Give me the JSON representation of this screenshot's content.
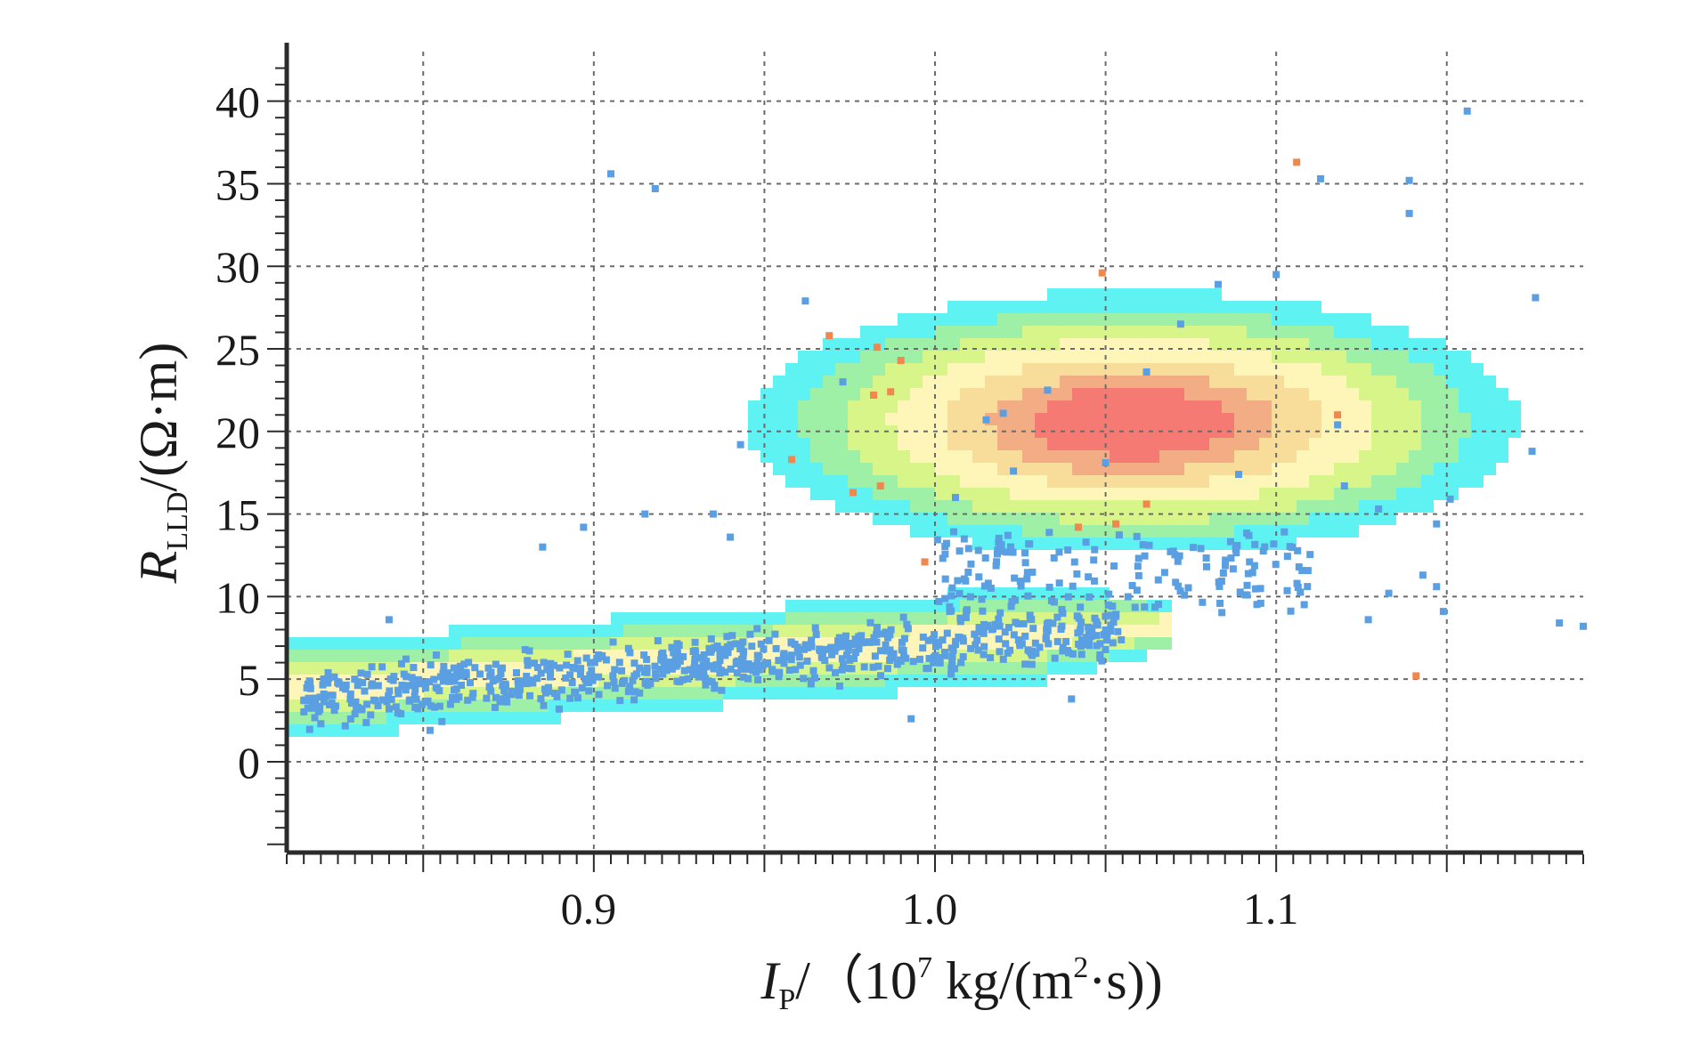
{
  "chart_data": {
    "type": "scatter",
    "title": "",
    "x_axis": {
      "label_main": "I",
      "label_sub": "P",
      "label_unit_pre": "/（10",
      "label_unit_exp": "7",
      "label_unit_mid": " kg/(m",
      "label_unit_exp2": "2",
      "label_unit_post": "·s))",
      "ticks": [
        0.9,
        1.0,
        1.1
      ],
      "tick_labels": [
        "0.9",
        "1.0",
        "1.1"
      ],
      "range": [
        0.81,
        1.19
      ]
    },
    "y_axis": {
      "label_main": "R",
      "label_sub": "LLD",
      "label_unit": "/(Ω·m)",
      "ticks": [
        0,
        5,
        10,
        15,
        20,
        25,
        30,
        35,
        40
      ],
      "tick_labels": [
        "0",
        "5",
        "10",
        "15",
        "20",
        "25",
        "30",
        "35",
        "40"
      ],
      "range": [
        -5.5,
        43
      ]
    },
    "grid": true,
    "grid_x": [
      0.85,
      0.9,
      0.95,
      1.0,
      1.05,
      1.1,
      1.15
    ],
    "grid_y": [
      0,
      5,
      10,
      15,
      20,
      25,
      30,
      35,
      40
    ],
    "density_colors": [
      "#5ff2f2",
      "#9df0a6",
      "#d8f58a",
      "#fdf6b8",
      "#f7dc9a",
      "#f3ad84",
      "#f57a73",
      "#f35c5c"
    ],
    "density_high_cluster": {
      "center_x": 1.058,
      "center_y": 20.5,
      "rings": [
        {
          "x_half": 0.113,
          "y_half": 8.0,
          "level": 0
        },
        {
          "x_half": 0.098,
          "y_half": 6.9,
          "level": 1
        },
        {
          "x_half": 0.085,
          "y_half": 6.0,
          "level": 2
        },
        {
          "x_half": 0.071,
          "y_half": 5.0,
          "level": 3
        },
        {
          "x_half": 0.056,
          "y_half": 3.9,
          "level": 4
        },
        {
          "x_half": 0.042,
          "y_half": 3.0,
          "level": 5
        },
        {
          "x_half": 0.03,
          "y_half": 2.1,
          "level": 6
        }
      ]
    },
    "density_band": {
      "x_start": 0.81,
      "x_end": 1.07,
      "y_at_start": 4.3,
      "y_at_end": 8.3,
      "rings": [
        {
          "half_height": 2.9,
          "level": 0
        },
        {
          "half_height": 2.1,
          "level": 1
        },
        {
          "half_height": 1.4,
          "level": 2
        },
        {
          "half_height": 0.8,
          "level": 3
        }
      ]
    },
    "series": [
      {
        "color": "#5b9fe3",
        "points": [
          [
            0.905,
            35.6
          ],
          [
            0.918,
            34.7
          ],
          [
            1.156,
            39.4
          ],
          [
            1.113,
            35.3
          ],
          [
            1.139,
            35.2
          ],
          [
            1.139,
            33.2
          ],
          [
            0.962,
            27.9
          ],
          [
            1.1,
            29.5
          ],
          [
            1.083,
            28.9
          ],
          [
            1.176,
            28.1
          ],
          [
            1.175,
            18.8
          ],
          [
            1.183,
            8.4
          ],
          [
            1.19,
            8.2
          ],
          [
            0.943,
            19.2
          ],
          [
            0.935,
            15.0
          ],
          [
            0.915,
            15.0
          ],
          [
            0.897,
            14.2
          ],
          [
            0.885,
            13.0
          ],
          [
            0.94,
            13.6
          ],
          [
            0.84,
            8.6
          ],
          [
            1.147,
            10.6
          ],
          [
            1.151,
            15.9
          ],
          [
            1.143,
            11.3
          ],
          [
            1.149,
            9.1
          ],
          [
            1.147,
            14.4
          ],
          [
            1.127,
            8.6
          ],
          [
            1.133,
            10.2
          ],
          [
            1.04,
            3.8
          ],
          [
            0.993,
            2.6
          ],
          [
            0.84,
            3.2
          ],
          [
            0.852,
            1.9
          ],
          [
            0.82,
            2.3
          ],
          [
            0.815,
            3.7
          ],
          [
            0.83,
            2.9
          ],
          [
            1.062,
            23.6
          ],
          [
            1.072,
            26.5
          ],
          [
            1.02,
            21.1
          ],
          [
            1.015,
            20.7
          ],
          [
            0.973,
            23.0
          ],
          [
            1.118,
            20.4
          ],
          [
            1.089,
            17.4
          ],
          [
            1.05,
            18.1
          ],
          [
            1.033,
            22.5
          ],
          [
            1.006,
            16.0
          ],
          [
            1.12,
            16.7
          ],
          [
            1.13,
            15.3
          ],
          [
            1.092,
            13.7
          ],
          [
            1.023,
            17.6
          ]
        ]
      },
      {
        "color": "#f0874f",
        "points": [
          [
            1.106,
            36.3
          ],
          [
            1.049,
            29.6
          ],
          [
            0.969,
            25.8
          ],
          [
            0.983,
            25.1
          ],
          [
            0.99,
            24.3
          ],
          [
            0.982,
            22.2
          ],
          [
            0.987,
            22.4
          ],
          [
            0.958,
            18.3
          ],
          [
            0.976,
            16.3
          ],
          [
            0.984,
            16.7
          ],
          [
            1.053,
            14.4
          ],
          [
            1.062,
            15.6
          ],
          [
            0.997,
            12.1
          ],
          [
            1.141,
            5.2
          ],
          [
            1.042,
            14.2
          ],
          [
            1.118,
            21.0
          ]
        ]
      }
    ]
  }
}
